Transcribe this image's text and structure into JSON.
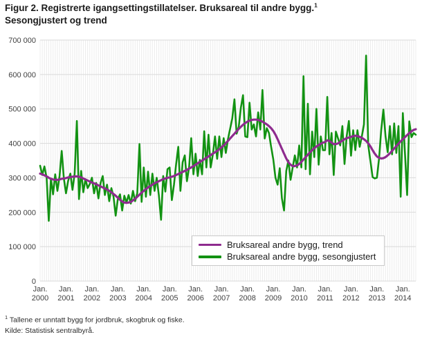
{
  "title": {
    "line1": "Figur 2. Registrerte igangsettingstillatelser. Bruksareal til andre bygg.",
    "superscript": "1",
    "line2": "Sesongjustert og trend"
  },
  "legend": {
    "items": [
      {
        "label": "Bruksareal andre bygg, trend",
        "color": "#8e2b8e"
      },
      {
        "label": "Bruksareal andre bygg, sesongjustert",
        "color": "#129212"
      }
    ]
  },
  "footnotes": {
    "note1_sup": "1",
    "note1": " Tallene er unntatt bygg for jordbruk, skogbruk og fiske.",
    "source": "Kilde: Statistisk sentralbyrå."
  },
  "colors": {
    "trend": "#8e2b8e",
    "seasonal": "#129212",
    "grid_major": "#d9d9d9",
    "grid_minor": "#ececec",
    "axis_text": "#404040"
  },
  "chart_data": {
    "type": "line",
    "title": "Figur 2. Registrerte igangsettingstillatelser. Bruksareal til andre bygg. Sesongjustert og trend",
    "frequency": "monthly",
    "x_start": "2000-01",
    "x_end": "2014-07",
    "x_month_label": "Jan.",
    "x_tick_years": [
      "2000",
      "2001",
      "2002",
      "2003",
      "2004",
      "2005",
      "2006",
      "2007",
      "2008",
      "2009",
      "2010",
      "2011",
      "2012",
      "2013",
      "2014"
    ],
    "ylim": [
      0,
      700000
    ],
    "y_ticks": [
      0,
      100000,
      200000,
      300000,
      400000,
      500000,
      600000,
      700000
    ],
    "y_tick_labels": [
      "0",
      "100 000",
      "200 000",
      "300 000",
      "400 000",
      "500 000",
      "600 000",
      "700 000"
    ],
    "grid": true,
    "legend_position": "inside-bottom-center",
    "series": [
      {
        "name": "Bruksareal andre bygg, sesongjustert",
        "color": "#129212",
        "width": 2.6,
        "values": [
          335000,
          308000,
          333000,
          300000,
          175000,
          298000,
          252000,
          310000,
          262000,
          305000,
          378000,
          298000,
          255000,
          292000,
          312000,
          265000,
          312000,
          465000,
          238000,
          320000,
          258000,
          296000,
          270000,
          282000,
          300000,
          255000,
          285000,
          240000,
          285000,
          305000,
          250000,
          280000,
          232000,
          270000,
          245000,
          190000,
          238000,
          252000,
          205000,
          248000,
          228000,
          250000,
          225000,
          262000,
          232000,
          255000,
          398000,
          230000,
          330000,
          245000,
          318000,
          250000,
          312000,
          262000,
          300000,
          250000,
          178000,
          305000,
          260000,
          325000,
          330000,
          235000,
          280000,
          340000,
          390000,
          262000,
          345000,
          365000,
          290000,
          330000,
          415000,
          310000,
          370000,
          305000,
          352000,
          310000,
          435000,
          330000,
          425000,
          330000,
          368000,
          420000,
          355000,
          420000,
          360000,
          415000,
          372000,
          412000,
          442000,
          472000,
          528000,
          428000,
          448000,
          504000,
          540000,
          420000,
          418000,
          518000,
          440000,
          455000,
          420000,
          490000,
          440000,
          555000,
          414000,
          444000,
          430000,
          390000,
          354000,
          300000,
          280000,
          328000,
          240000,
          205000,
          320000,
          350000,
          294000,
          330000,
          365000,
          330000,
          394000,
          330000,
          595000,
          325000,
          515000,
          310000,
          434000,
          360000,
          500000,
          338000,
          420000,
          380000,
          380000,
          535000,
          368000,
          430000,
          308000,
          434000,
          414000,
          394000,
          450000,
          340000,
          420000,
          465000,
          364000,
          438000,
          380000,
          438000,
          390000,
          420000,
          455000,
          655000,
          394000,
          348000,
          302000,
          298000,
          300000,
          355000,
          440000,
          498000,
          420000,
          374000,
          450000,
          368000,
          458000,
          372000,
          450000,
          245000,
          488000,
          370000,
          250000,
          464000,
          418000,
          430000,
          425000
        ]
      },
      {
        "name": "Bruksareal andre bygg, trend",
        "color": "#8e2b8e",
        "width": 3.2,
        "values": [
          312000,
          310000,
          307000,
          304000,
          300000,
          297000,
          295000,
          294000,
          294000,
          295000,
          297000,
          298000,
          299000,
          301000,
          302000,
          303000,
          304000,
          304000,
          303000,
          301000,
          298000,
          295000,
          292000,
          289000,
          286000,
          284000,
          281000,
          278000,
          275000,
          272000,
          269000,
          266000,
          262000,
          258000,
          253000,
          248000,
          242000,
          236000,
          231000,
          228000,
          227000,
          228000,
          230000,
          234000,
          239000,
          245000,
          251000,
          257000,
          262000,
          267000,
          272000,
          276000,
          280000,
          284000,
          287000,
          290000,
          293000,
          296000,
          298000,
          300000,
          301000,
          303000,
          305000,
          308000,
          311000,
          314000,
          317000,
          320000,
          323000,
          327000,
          330000,
          334000,
          338000,
          342000,
          346000,
          350000,
          354000,
          358000,
          362000,
          366000,
          370000,
          374000,
          378000,
          383000,
          388000,
          394000,
          400000,
          407000,
          414000,
          421000,
          428000,
          435000,
          442000,
          448000,
          454000,
          459000,
          463000,
          466000,
          468000,
          469000,
          469000,
          468000,
          466000,
          463000,
          459000,
          455000,
          450000,
          444000,
          436000,
          425000,
          412000,
          398000,
          384000,
          370000,
          356000,
          345000,
          338000,
          334000,
          334000,
          336000,
          340000,
          346000,
          353000,
          360000,
          367000,
          374000,
          380000,
          386000,
          391000,
          395000,
          399000,
          402000,
          404000,
          409000,
          407000,
          402000,
          398000,
          398000,
          400000,
          404000,
          408000,
          412000,
          415000,
          417000,
          419000,
          421000,
          422000,
          421000,
          419000,
          416000,
          412000,
          407000,
          400000,
          391000,
          380000,
          370000,
          362000,
          358000,
          356000,
          357000,
          360000,
          365000,
          371000,
          378000,
          385000,
          392000,
          399000,
          406000,
          412000,
          418000,
          424000,
          430000,
          435000,
          439000,
          441000
        ]
      }
    ]
  }
}
